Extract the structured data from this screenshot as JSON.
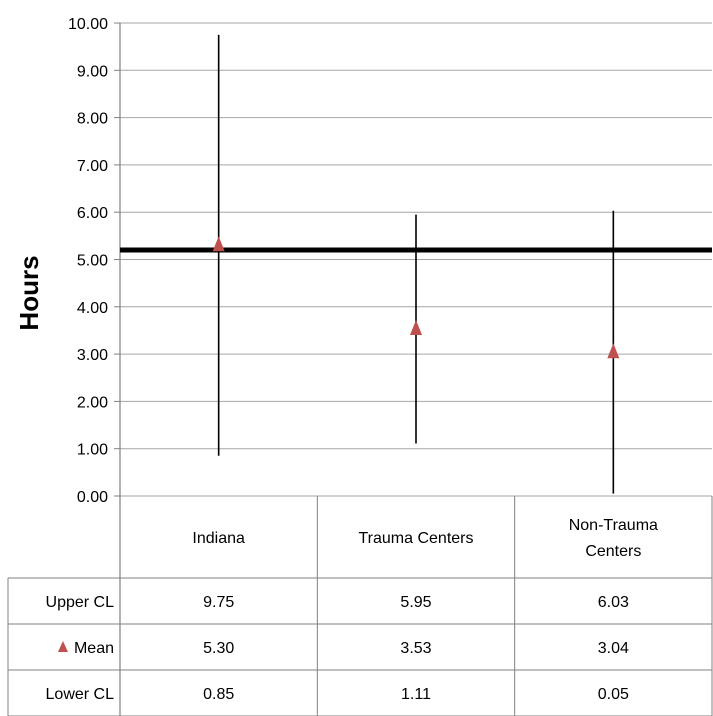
{
  "chart_data": {
    "type": "scatter",
    "title": "",
    "xlabel": "",
    "ylabel": "Hours",
    "ylim": [
      0,
      10
    ],
    "yticks": [
      "0.00",
      "1.00",
      "2.00",
      "3.00",
      "4.00",
      "5.00",
      "6.00",
      "7.00",
      "8.00",
      "9.00",
      "10.00"
    ],
    "grid": true,
    "categories": [
      "Indiana",
      "Trauma Centers",
      "Non-Trauma Centers"
    ],
    "category_lines": [
      [
        "Indiana"
      ],
      [
        "Trauma Centers"
      ],
      [
        "Non-Trauma",
        "Centers"
      ]
    ],
    "reference_line": 5.2,
    "series": [
      {
        "name": "Upper CL",
        "values": [
          9.75,
          5.95,
          6.03
        ]
      },
      {
        "name": "Mean",
        "values": [
          5.3,
          3.53,
          3.04
        ],
        "marker": "triangle",
        "color": "#c0504d"
      },
      {
        "name": "Lower CL",
        "values": [
          0.85,
          1.11,
          0.05
        ]
      }
    ],
    "table": {
      "rows": [
        {
          "label": "Upper CL",
          "cells": [
            "9.75",
            "5.95",
            "6.03"
          ]
        },
        {
          "label": "Mean",
          "cells": [
            "5.30",
            "3.53",
            "3.04"
          ]
        },
        {
          "label": "Lower CL",
          "cells": [
            "0.85",
            "1.11",
            "0.05"
          ]
        }
      ]
    }
  }
}
